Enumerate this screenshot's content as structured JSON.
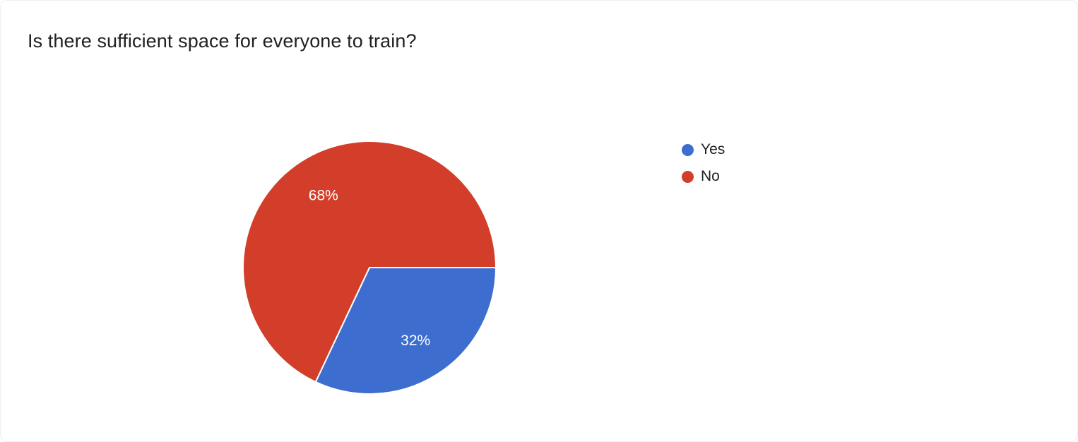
{
  "header": {
    "title": "Is there sufficient space for everyone to train?"
  },
  "chart_data": {
    "type": "pie",
    "title": "Is there sufficient space for everyone to train?",
    "categories": [
      "Yes",
      "No"
    ],
    "values": [
      32,
      68
    ],
    "labels": [
      "32%",
      "68%"
    ],
    "colors": [
      "#3d6dce",
      "#d33e2a"
    ],
    "label_color": "#ffffff",
    "slice_border_color": "#ffffff",
    "start_angle_deg": 90,
    "direction": "clockwise",
    "legend_position": "right"
  },
  "legend": {
    "items": [
      {
        "label": "Yes",
        "color": "#3d6dce"
      },
      {
        "label": "No",
        "color": "#d33e2a"
      }
    ]
  }
}
